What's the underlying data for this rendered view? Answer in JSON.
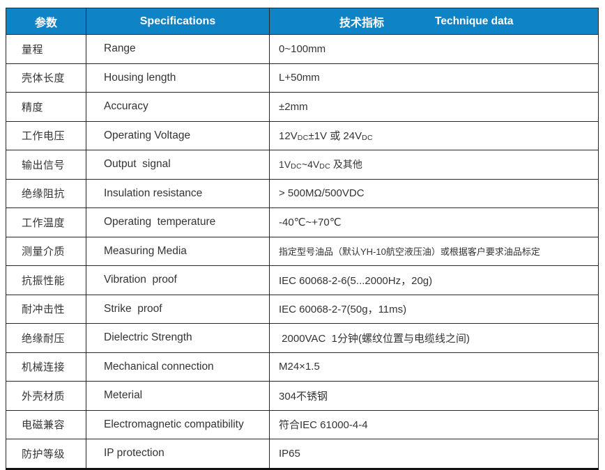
{
  "colors": {
    "header_bg": "#0e83c6",
    "header_text": "#ffffff",
    "body_text": "#333333",
    "border": "#262626"
  },
  "table": {
    "header": {
      "param": "参数",
      "spec": "Specifications",
      "tech_cn": "技术指标",
      "tech_en": "Technique data"
    },
    "rows": [
      {
        "param": "量程",
        "spec": "Range",
        "value": "0~100mm"
      },
      {
        "param": "壳体长度",
        "spec": "Housing length",
        "value": "L+50mm"
      },
      {
        "param": "精度",
        "spec": "Accuracy",
        "value": "±2mm"
      },
      {
        "param": "工作电压",
        "spec": "Operating Voltage",
        "value_segments": [
          {
            "text": "12V"
          },
          {
            "sub": "DC"
          },
          {
            "text": "±1V 或 24V"
          },
          {
            "sub": "DC"
          }
        ]
      },
      {
        "param": "输出信号",
        "spec": "Output  signal",
        "value_segments": [
          {
            "text": "1V"
          },
          {
            "sub": "DC"
          },
          {
            "text": "~4V"
          },
          {
            "sub": "DC"
          },
          {
            "text": " 及其他"
          }
        ]
      },
      {
        "param": "绝缘阻抗",
        "spec": "Insulation resistance",
        "value": "> 500MΩ/500VDC"
      },
      {
        "param": "工作温度",
        "spec": "Operating  temperature",
        "value": "-40℃~+70℃"
      },
      {
        "param": "测量介质",
        "spec": "Measuring Media",
        "value": "指定型号油品（默认YH-10航空液压油）或根据客户要求油品标定"
      },
      {
        "param": "抗振性能",
        "spec": "Vibration  proof",
        "value": "IEC 60068-2-6(5...2000Hz，20g)"
      },
      {
        "param": "耐冲击性",
        "spec": "Strike  proof",
        "value": "IEC 60068-2-7(50g，11ms)"
      },
      {
        "param": "绝缘耐压",
        "spec": "Dielectric Strength",
        "value": " 2000VAC  1分钟(螺纹位置与电缆线之间)"
      },
      {
        "param": "机械连接",
        "spec": "Mechanical connection",
        "value": "M24×1.5"
      },
      {
        "param": "外壳材质",
        "spec": "Meterial",
        "value": "304不锈钢"
      },
      {
        "param": "电磁兼容",
        "spec": "Electromagnetic compatibility",
        "value": "符合IEC 61000-4-4"
      },
      {
        "param": "防护等级",
        "spec": "IP protection",
        "value": "IP65"
      }
    ]
  }
}
